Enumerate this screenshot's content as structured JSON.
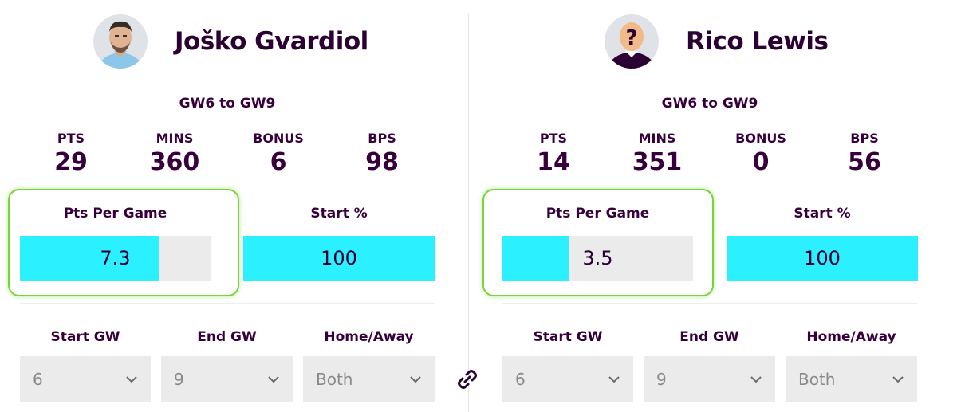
{
  "players": [
    {
      "name": "Joško Gvardiol",
      "avatar": "player-photo-icon",
      "gw_range": "GW6 to GW9",
      "stats": [
        {
          "label": "PTS",
          "value": "29"
        },
        {
          "label": "MINS",
          "value": "360"
        },
        {
          "label": "BONUS",
          "value": "6"
        },
        {
          "label": "BPS",
          "value": "98"
        }
      ],
      "pts_per_game": {
        "label": "Pts Per Game",
        "value": "7.3",
        "fill_fraction": 0.73
      },
      "start_pct": {
        "label": "Start %",
        "value": "100",
        "fill_fraction": 1.0
      },
      "filters": {
        "start_gw": {
          "label": "Start GW",
          "value": "6"
        },
        "end_gw": {
          "label": "End GW",
          "value": "9"
        },
        "home_away": {
          "label": "Home/Away",
          "value": "Both"
        }
      }
    },
    {
      "name": "Rico Lewis",
      "avatar": "unknown-player-icon",
      "avatar_text": "?",
      "gw_range": "GW6 to GW9",
      "stats": [
        {
          "label": "PTS",
          "value": "14"
        },
        {
          "label": "MINS",
          "value": "351"
        },
        {
          "label": "BONUS",
          "value": "0"
        },
        {
          "label": "BPS",
          "value": "56"
        }
      ],
      "pts_per_game": {
        "label": "Pts Per Game",
        "value": "3.5",
        "fill_fraction": 0.35
      },
      "start_pct": {
        "label": "Start %",
        "value": "100",
        "fill_fraction": 1.0
      },
      "filters": {
        "start_gw": {
          "label": "Start GW",
          "value": "6"
        },
        "end_gw": {
          "label": "End GW",
          "value": "9"
        },
        "home_away": {
          "label": "Home/Away",
          "value": "Both"
        }
      }
    }
  ],
  "link_icon": "link-icon",
  "colors": {
    "accent": "#2af0ff",
    "text": "#37003c",
    "highlight": "#7ad33a",
    "track": "#ebebeb"
  }
}
